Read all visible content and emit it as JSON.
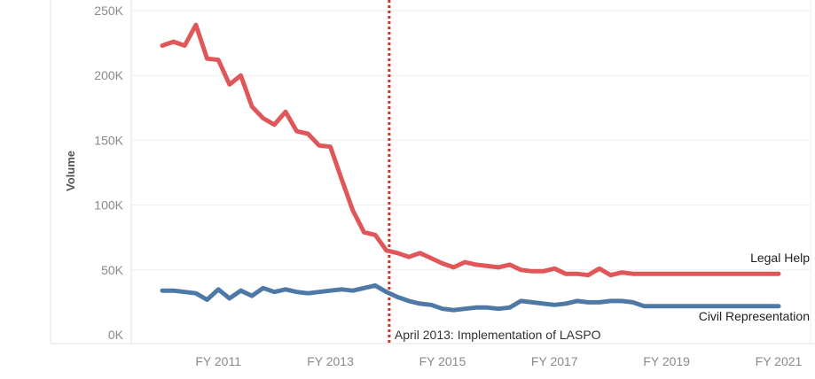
{
  "chart_data": {
    "type": "line",
    "ylabel": "Volume",
    "xlabel": "",
    "ylim": [
      0,
      250000
    ],
    "yticks": [
      {
        "value": 0,
        "label": "0K"
      },
      {
        "value": 50000,
        "label": "50K"
      },
      {
        "value": 100000,
        "label": "100K"
      },
      {
        "value": 150000,
        "label": "150K"
      },
      {
        "value": 200000,
        "label": "200K"
      },
      {
        "value": 250000,
        "label": "250K"
      }
    ],
    "xticks": [
      {
        "value": 2011,
        "label": "FY 2011"
      },
      {
        "value": 2013,
        "label": "FY 2013"
      },
      {
        "value": 2015,
        "label": "FY 2015"
      },
      {
        "value": 2017,
        "label": "FY 2017"
      },
      {
        "value": 2019,
        "label": "FY 2019"
      },
      {
        "value": 2021,
        "label": "FY 2021"
      }
    ],
    "x": [
      2010.0,
      2010.2,
      2010.4,
      2010.6,
      2010.8,
      2011.0,
      2011.2,
      2011.4,
      2011.6,
      2011.8,
      2012.0,
      2012.2,
      2012.4,
      2012.6,
      2012.8,
      2013.0,
      2013.2,
      2013.4,
      2013.6,
      2013.8,
      2014.0,
      2014.2,
      2014.4,
      2014.6,
      2014.8,
      2015.0,
      2015.2,
      2015.4,
      2015.6,
      2015.8,
      2016.0,
      2016.2,
      2016.4,
      2016.6,
      2016.8,
      2017.0,
      2017.2,
      2017.4,
      2017.6,
      2017.8,
      2018.0,
      2018.2,
      2018.4,
      2018.6,
      2018.8,
      2019.0,
      2019.2,
      2019.4,
      2019.6,
      2019.8,
      2020.0,
      2020.2,
      2020.4,
      2020.6,
      2020.8,
      2021.0
    ],
    "series": [
      {
        "name": "Legal Help",
        "color": "#e05759",
        "values": [
          223000,
          226000,
          223000,
          239000,
          213000,
          212000,
          193000,
          200000,
          176000,
          167000,
          162000,
          172000,
          157000,
          155000,
          146000,
          145000,
          120000,
          96000,
          79000,
          77000,
          65000,
          63000,
          60000,
          63000,
          59000,
          55000,
          52000,
          56000,
          54000,
          53000,
          52000,
          54000,
          50000,
          49000,
          49000,
          51000,
          47000,
          47000,
          46000,
          51000,
          46000,
          48000,
          47000,
          47000,
          47000,
          47000,
          47000,
          47000,
          47000,
          47000,
          47000,
          47000,
          47000,
          47000,
          47000,
          47000
        ]
      },
      {
        "name": "Civil Representation",
        "color": "#4e79a7",
        "values": [
          34000,
          34000,
          33000,
          32000,
          27000,
          35000,
          28000,
          34000,
          30000,
          36000,
          33000,
          35000,
          33000,
          32000,
          33000,
          34000,
          35000,
          34000,
          36000,
          38000,
          33000,
          29000,
          26000,
          24000,
          23000,
          20000,
          19000,
          20000,
          21000,
          21000,
          20000,
          21000,
          26000,
          25000,
          24000,
          23000,
          24000,
          26000,
          25000,
          25000,
          26000,
          26000,
          25000,
          22000,
          22000,
          22000,
          22000,
          22000,
          22000,
          22000,
          22000,
          22000,
          22000,
          22000,
          22000,
          22000
        ]
      }
    ],
    "annotations": [
      {
        "x": 2014.05,
        "text": "April 2013: Implementation of LASPO",
        "style": "dotted-vertical-line",
        "color": "#c0392b"
      }
    ],
    "grid": "horizontal"
  }
}
